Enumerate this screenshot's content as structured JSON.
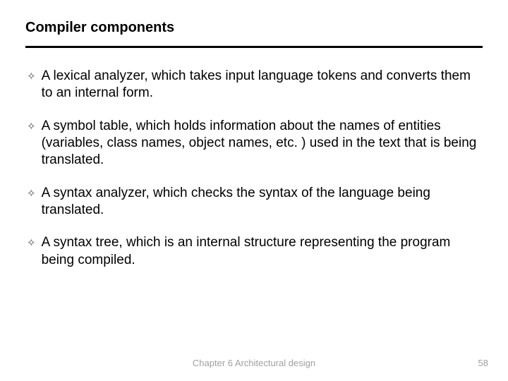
{
  "slide": {
    "title": "Compiler components",
    "title_fontsize": 20,
    "title_color": "#000000",
    "divider_color": "#000000",
    "divider_thickness": 3,
    "bullet_marker": "✧",
    "bullet_marker_color": "#555555",
    "body_fontsize": 19,
    "body_color": "#000000",
    "background_color": "#ffffff",
    "bullets": [
      "A lexical analyzer, which takes input language tokens and converts them to an internal form.",
      "A symbol table, which holds information about the names of entities (variables, class names, object names, etc. ) used in the text that is being translated.",
      "A syntax analyzer, which checks the syntax of the language being translated.",
      "A syntax tree, which is an internal structure representing the program being compiled."
    ],
    "footer": {
      "text": "Chapter 6 Architectural design",
      "page_number": "58",
      "fontsize": 13,
      "color": "#a0a0a0"
    }
  }
}
